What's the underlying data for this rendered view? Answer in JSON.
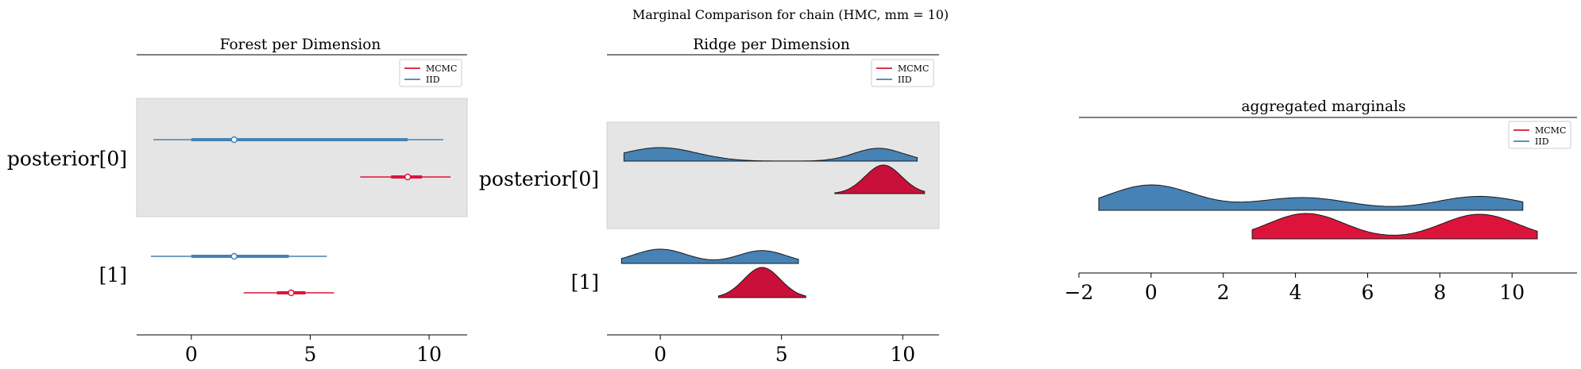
{
  "figure": {
    "suptitle": "Marginal Comparison for chain (HMC, mm = 10)"
  },
  "colors": {
    "mcmc": "#dc143c",
    "mcmc_dark": "#c8103a",
    "iid": "#4682b4",
    "band": "#e5e5e5"
  },
  "chart_data": [
    {
      "type": "forest",
      "title": "Forest per Dimension",
      "xticks": [
        0,
        5,
        10
      ],
      "xlim": [
        -2.3,
        11.6
      ],
      "legend": {
        "placement": "top-right",
        "entries": [
          "MCMC",
          "IID"
        ]
      },
      "rows": [
        {
          "label": "posterior[0]",
          "shaded": true,
          "series": [
            {
              "name": "IID",
              "median": 1.8,
              "hdi_50": [
                0.0,
                9.1
              ],
              "hdi_94": [
                -1.6,
                10.6
              ]
            },
            {
              "name": "MCMC",
              "median": 9.1,
              "hdi_50": [
                8.4,
                9.7
              ],
              "hdi_94": [
                7.1,
                10.9
              ]
            }
          ]
        },
        {
          "label": "[1]",
          "shaded": false,
          "series": [
            {
              "name": "IID",
              "median": 1.8,
              "hdi_50": [
                0.0,
                4.1
              ],
              "hdi_94": [
                -1.7,
                5.7
              ]
            },
            {
              "name": "MCMC",
              "median": 4.2,
              "hdi_50": [
                3.6,
                4.8
              ],
              "hdi_94": [
                2.2,
                6.0
              ]
            }
          ]
        }
      ]
    },
    {
      "type": "ridgeline",
      "title": "Ridge per Dimension",
      "xticks": [
        0,
        5,
        10
      ],
      "xlim": [
        -2.2,
        11.5
      ],
      "legend": {
        "placement": "top-right",
        "entries": [
          "MCMC",
          "IID"
        ]
      },
      "rows": [
        {
          "label": "posterior[0]",
          "shaded": true,
          "series": [
            {
              "name": "IID",
              "range": [
                -1.5,
                10.6
              ],
              "peaks": [
                [
                  0.0,
                  1.5,
                  1.0
                ],
                [
                  9.0,
                  1.0,
                  0.95
                ]
              ]
            },
            {
              "name": "MCMC",
              "range": [
                7.2,
                10.9
              ],
              "peaks": [
                [
                  9.2,
                  0.75,
                  1.0
                ]
              ]
            }
          ]
        },
        {
          "label": "[1]",
          "shaded": false,
          "series": [
            {
              "name": "IID",
              "range": [
                -1.6,
                5.7
              ],
              "peaks": [
                [
                  0.0,
                  1.1,
                  1.0
                ],
                [
                  4.2,
                  1.0,
                  0.9
                ]
              ]
            },
            {
              "name": "MCMC",
              "range": [
                2.4,
                6.0
              ],
              "peaks": [
                [
                  4.2,
                  0.75,
                  1.0
                ]
              ]
            }
          ]
        }
      ]
    },
    {
      "type": "ridgeline",
      "title": "aggregated marginals",
      "xticks": [
        -2,
        0,
        2,
        4,
        6,
        8,
        10
      ],
      "xlim": [
        -2.0,
        11.8
      ],
      "legend": {
        "placement": "top-right",
        "entries": [
          "MCMC",
          "IID"
        ]
      },
      "series": [
        {
          "name": "IID",
          "range": [
            -1.45,
            10.3
          ],
          "peaks": [
            [
              0.0,
              1.2,
              1.0
            ],
            [
              4.2,
              1.3,
              0.5
            ],
            [
              9.1,
              1.2,
              0.55
            ]
          ]
        },
        {
          "name": "MCMC",
          "range": [
            2.8,
            10.7
          ],
          "peaks": [
            [
              4.3,
              1.05,
              1.0
            ],
            [
              9.1,
              1.05,
              0.97
            ]
          ]
        }
      ]
    }
  ]
}
